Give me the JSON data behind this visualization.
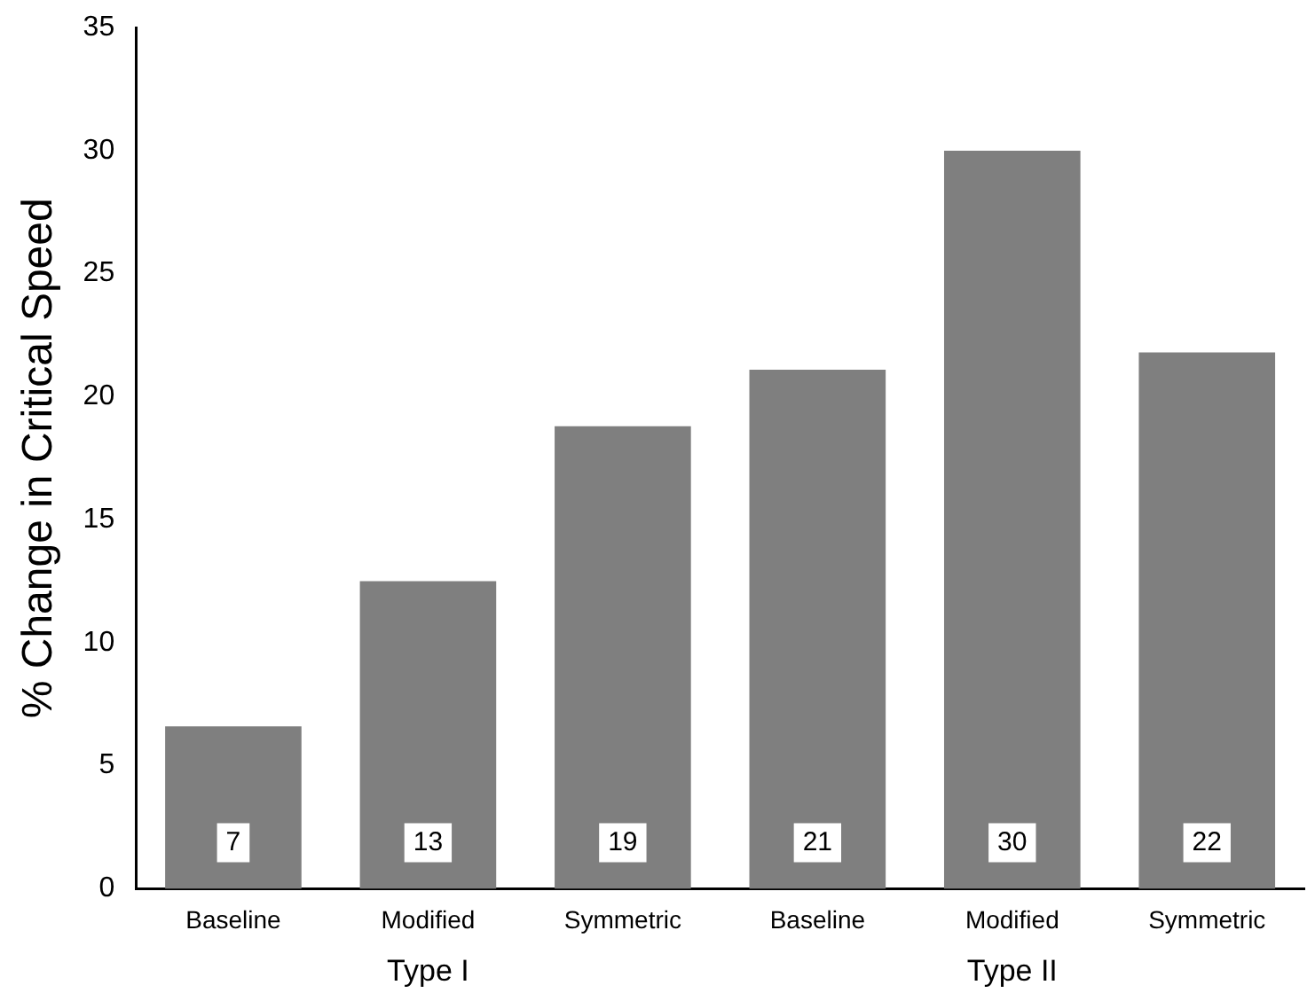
{
  "chart_data": {
    "type": "bar",
    "ylabel": "% Change in Critical Speed",
    "categories": [
      "Baseline",
      "Modified",
      "Symmetric",
      "Baseline",
      "Modified",
      "Symmetric"
    ],
    "values": [
      6.6,
      12.5,
      18.8,
      21.1,
      30,
      21.8
    ],
    "value_labels": [
      "7",
      "13",
      "19",
      "21",
      "30",
      "22"
    ],
    "color": "#7f7f7f",
    "ylim": [
      0,
      35
    ],
    "yticks": [
      0,
      5,
      10,
      15,
      20,
      25,
      30,
      35
    ],
    "grid": false,
    "legend": false,
    "annotations": [
      "Type I",
      "Type II"
    ]
  }
}
